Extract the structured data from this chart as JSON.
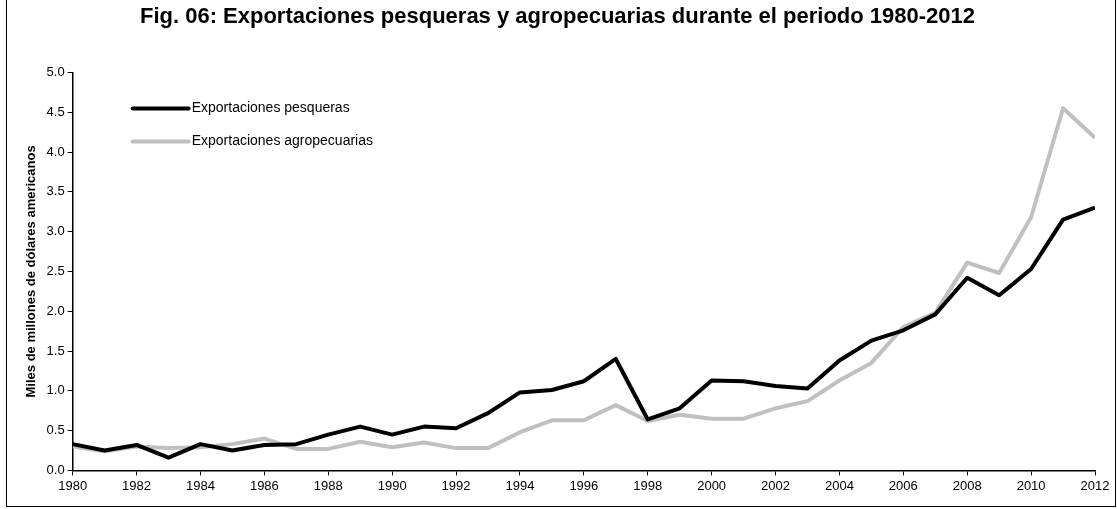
{
  "chart_data": {
    "type": "line",
    "title": "Fig. 06: Exportaciones pesqueras y agropecuarias durante el periodo 1980-2012",
    "ylabel": "Miles de millones de dólares americanos",
    "x": [
      1980,
      1981,
      1982,
      1983,
      1984,
      1985,
      1986,
      1987,
      1988,
      1989,
      1990,
      1991,
      1992,
      1993,
      1994,
      1995,
      1996,
      1997,
      1998,
      1999,
      2000,
      2001,
      2002,
      2003,
      2004,
      2005,
      2006,
      2007,
      2008,
      2009,
      2010,
      2011,
      2012
    ],
    "series": [
      {
        "name": "Exportaciones pesqueras",
        "color": "#000000",
        "values": [
          0.33,
          0.25,
          0.32,
          0.16,
          0.33,
          0.25,
          0.32,
          0.33,
          0.45,
          0.55,
          0.45,
          0.55,
          0.53,
          0.72,
          0.98,
          1.01,
          1.12,
          1.4,
          0.64,
          0.78,
          1.13,
          1.12,
          1.06,
          1.03,
          1.38,
          1.63,
          1.76,
          1.96,
          2.42,
          2.2,
          2.53,
          3.15,
          3.3
        ]
      },
      {
        "name": "Exportaciones agropecuarias",
        "color": "#c0c0c0",
        "values": [
          0.3,
          0.24,
          0.3,
          0.28,
          0.29,
          0.33,
          0.4,
          0.27,
          0.27,
          0.36,
          0.29,
          0.35,
          0.28,
          0.28,
          0.48,
          0.63,
          0.63,
          0.82,
          0.62,
          0.7,
          0.65,
          0.65,
          0.78,
          0.87,
          1.13,
          1.35,
          1.8,
          1.98,
          2.61,
          2.48,
          3.18,
          4.55,
          4.18
        ]
      }
    ],
    "xlim": [
      1980,
      2012
    ],
    "xticks": [
      1980,
      1982,
      1984,
      1986,
      1988,
      1990,
      1992,
      1994,
      1996,
      1998,
      2000,
      2002,
      2004,
      2006,
      2008,
      2010,
      2012
    ],
    "ylim": [
      0,
      5
    ],
    "yticks": [
      {
        "value": 0,
        "label": "0.0"
      },
      {
        "value": 0.5,
        "label": "0.5"
      },
      {
        "value": 1,
        "label": "1.0"
      },
      {
        "value": 1.5,
        "label": "1.5"
      },
      {
        "value": 2,
        "label": "2.0"
      },
      {
        "value": 2.5,
        "label": "2.5"
      },
      {
        "value": 3,
        "label": "3.0"
      },
      {
        "value": 3.5,
        "label": "3.5"
      },
      {
        "value": 4,
        "label": "4.0"
      },
      {
        "value": 4.5,
        "label": "4.5"
      },
      {
        "value": 5,
        "label": "5.0"
      }
    ],
    "grid": false,
    "legend": "top left",
    "marker": "none",
    "line_style": "solid"
  }
}
